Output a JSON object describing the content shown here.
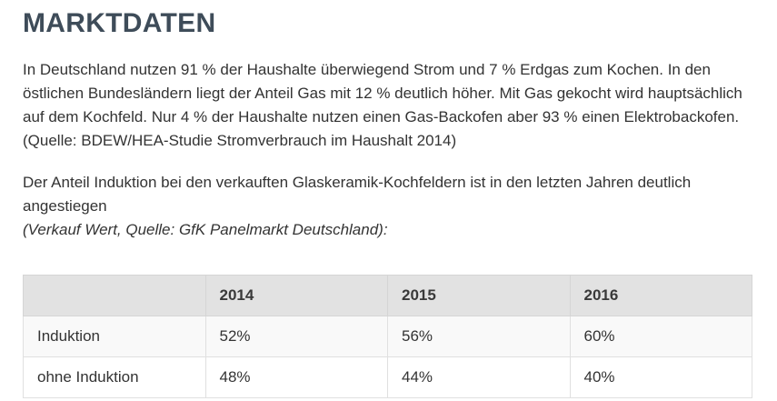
{
  "page": {
    "title": "MARKTDATEN"
  },
  "paragraphs": {
    "intro": "In Deutschland nutzen 91 % der Haushalte überwiegend Strom und 7 % Erdgas zum Kochen. In den östlichen Bundesländern liegt der Anteil Gas mit 12 % deutlich höher. Mit Gas gekocht wird hauptsächlich auf dem Kochfeld. Nur 4 % der Haushalte nutzen einen Gas-Backofen aber 93 % einen Elektrobackofen. (Quelle: BDEW/HEA-Studie Stromverbrauch im Haushalt 2014)",
    "induction_trend": "Der Anteil Induktion bei den verkauften Glaskeramik-Kochfeldern ist in den letzten Jahren deutlich angestiegen",
    "induction_source": "(Verkauf Wert, Quelle: GfK Panelmarkt Deutschland):"
  },
  "table": {
    "headers": [
      "",
      "2014",
      "2015",
      "2016"
    ],
    "rows": [
      {
        "label": "Induktion",
        "values": [
          "52%",
          "56%",
          "60%"
        ]
      },
      {
        "label": "ohne Induktion",
        "values": [
          "48%",
          "44%",
          "40%"
        ]
      }
    ]
  },
  "chart_data": {
    "type": "table",
    "title": "Anteil Induktion bei verkauften Glaskeramik-Kochfeldern",
    "categories": [
      "2014",
      "2015",
      "2016"
    ],
    "series": [
      {
        "name": "Induktion",
        "values": [
          52,
          56,
          60
        ]
      },
      {
        "name": "ohne Induktion",
        "values": [
          48,
          44,
          40
        ]
      }
    ],
    "unit": "%"
  },
  "colors": {
    "heading": "#3e4c59",
    "body_text": "#333333",
    "table_header_bg": "#e2e2e2",
    "table_row_odd_bg": "#f9f9f9",
    "table_row_even_bg": "#ffffff",
    "table_border": "#e0e0e0",
    "page_bg": "#ffffff"
  }
}
